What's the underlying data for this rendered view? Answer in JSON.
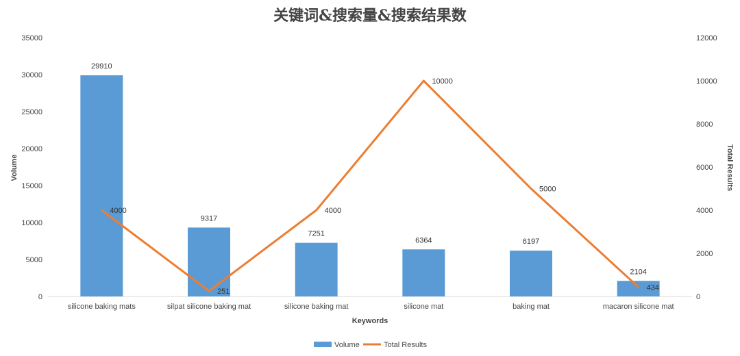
{
  "chart_data": {
    "type": "bar",
    "title": "关键词&搜索量&搜索结果数",
    "xlabel": "Keywords",
    "ylabel": "Volume",
    "y2label": "Total Results",
    "categories": [
      "silicone baking mats",
      "silpat silicone baking mat",
      "silicone baking mat",
      "silicone mat",
      "baking mat",
      "macaron silicone mat"
    ],
    "ylim": [
      0,
      35000
    ],
    "y2lim": [
      0,
      12000
    ],
    "yticks": [
      "0",
      "5000",
      "10000",
      "15000",
      "20000",
      "25000",
      "30000",
      "35000"
    ],
    "y2ticks": [
      "0",
      "2000",
      "4000",
      "6000",
      "8000",
      "10000",
      "12000"
    ],
    "series": [
      {
        "name": "Volume",
        "type": "bar",
        "axis": "left",
        "color": "#5B9BD5",
        "values": [
          29910,
          9317,
          7251,
          6364,
          6197,
          2104
        ]
      },
      {
        "name": "Total Results",
        "type": "line",
        "axis": "right",
        "color": "#ED7D31",
        "values": [
          4000,
          251,
          4000,
          10000,
          5000,
          434
        ]
      }
    ],
    "grid": false,
    "legend": "bottom"
  }
}
